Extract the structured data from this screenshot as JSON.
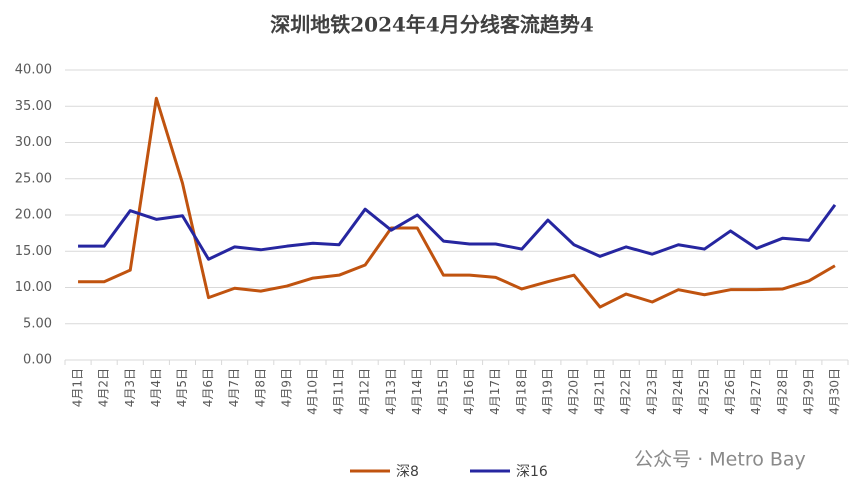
{
  "chart_data": {
    "type": "line",
    "title": "深圳地铁2024年4月分线客流趋势4",
    "categories": [
      "4月1日",
      "4月2日",
      "4月3日",
      "4月4日",
      "4月5日",
      "4月6日",
      "4月7日",
      "4月8日",
      "4月9日",
      "4月10日",
      "4月11日",
      "4月12日",
      "4月13日",
      "4月14日",
      "4月15日",
      "4月16日",
      "4月17日",
      "4月18日",
      "4月19日",
      "4月20日",
      "4月21日",
      "4月22日",
      "4月23日",
      "4月24日",
      "4月25日",
      "4月26日",
      "4月27日",
      "4月28日",
      "4月29日",
      "4月30日"
    ],
    "series": [
      {
        "name": "深8",
        "color": "#c0530f",
        "values": [
          10.8,
          10.8,
          12.4,
          36.1,
          24.4,
          8.6,
          9.9,
          9.5,
          10.2,
          11.3,
          11.7,
          13.1,
          18.2,
          18.2,
          11.7,
          11.7,
          11.4,
          9.8,
          10.8,
          11.7,
          7.3,
          9.1,
          8.0,
          9.7,
          9.0,
          9.7,
          9.7,
          9.8,
          10.9,
          13.0
        ]
      },
      {
        "name": "深16",
        "color": "#2626a0",
        "values": [
          15.7,
          15.7,
          20.6,
          19.4,
          19.9,
          13.9,
          15.6,
          15.2,
          15.7,
          16.1,
          15.9,
          20.8,
          17.9,
          20.0,
          16.4,
          16.0,
          16.0,
          15.3,
          19.3,
          15.9,
          14.3,
          15.6,
          14.6,
          15.9,
          15.3,
          17.8,
          15.4,
          16.8,
          16.5,
          21.4
        ]
      }
    ],
    "ylim": [
      0,
      40
    ],
    "yticks": [
      {
        "value": 0,
        "label": "0.00"
      },
      {
        "value": 5,
        "label": "5.00"
      },
      {
        "value": 10,
        "label": "10.00"
      },
      {
        "value": 15,
        "label": "15.00"
      },
      {
        "value": 20,
        "label": "20.00"
      },
      {
        "value": 25,
        "label": "25.00"
      },
      {
        "value": 30,
        "label": "30.00"
      },
      {
        "value": 35,
        "label": "35.00"
      },
      {
        "value": 40,
        "label": "40.00"
      }
    ],
    "grid": true,
    "legend": "bottom",
    "watermark": "公众号 · Metro Bay"
  }
}
